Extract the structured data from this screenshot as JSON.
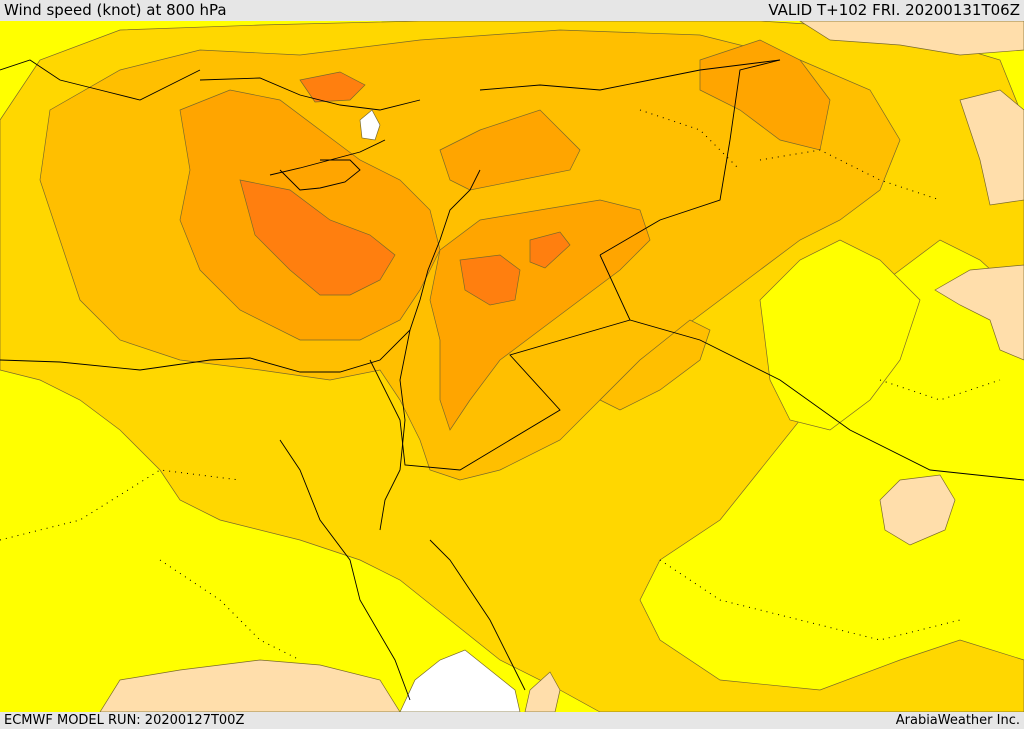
{
  "header": {
    "title": "Wind speed (knot) at 800 hPa",
    "valid": "VALID T+102 FRI. 20200131T06Z"
  },
  "footer": {
    "model_run": "ECMWF MODEL RUN: 20200127T00Z",
    "credit": "ArabiaWeather Inc."
  },
  "colors": {
    "low": "#ffdeab",
    "base": "#ffff00",
    "band_1": "#ffd700",
    "band_2": "#ffbf00",
    "band_3": "#ffa500",
    "band_4": "#ff7f0f",
    "band_5": "#ff5a00",
    "missing": "#ffffff",
    "contour": "#7a6a2a",
    "borders": "#000000"
  }
}
